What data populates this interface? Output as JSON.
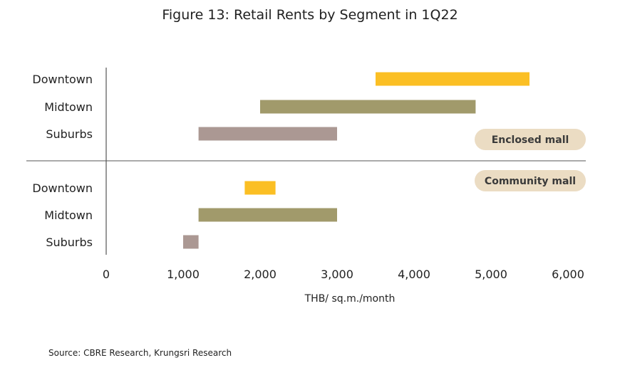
{
  "chart_data": {
    "type": "bar",
    "orientation": "horizontal-range",
    "title": "Figure 13: Retail Rents by Segment in 1Q22",
    "xlabel": "THB/ sq.m./month",
    "xlim": [
      0,
      6000
    ],
    "xticks": [
      0,
      1000,
      2000,
      3000,
      4000,
      5000,
      6000
    ],
    "xtick_labels": [
      "0",
      "1,000",
      "2,000",
      "3,000",
      "4,000",
      "5,000",
      "6,000"
    ],
    "grid": false,
    "groups": [
      {
        "name": "Enclosed mall",
        "rows": [
          {
            "label": "Downtown",
            "min": 3500,
            "max": 5500,
            "color": "#FBBF24"
          },
          {
            "label": "Midtown",
            "min": 2000,
            "max": 4800,
            "color": "#A19A6B"
          },
          {
            "label": "Suburbs",
            "min": 1200,
            "max": 3000,
            "color": "#AB9893"
          }
        ]
      },
      {
        "name": "Community mall",
        "rows": [
          {
            "label": "Downtown",
            "min": 1800,
            "max": 2200,
            "color": "#FBBF24"
          },
          {
            "label": "Midtown",
            "min": 1200,
            "max": 3000,
            "color": "#A19A6B"
          },
          {
            "label": "Suburbs",
            "min": 1000,
            "max": 1200,
            "color": "#AB9893"
          }
        ]
      }
    ],
    "badge_color": "#EBDCC3",
    "source": "Source: CBRE Research, Krungsri Research"
  }
}
